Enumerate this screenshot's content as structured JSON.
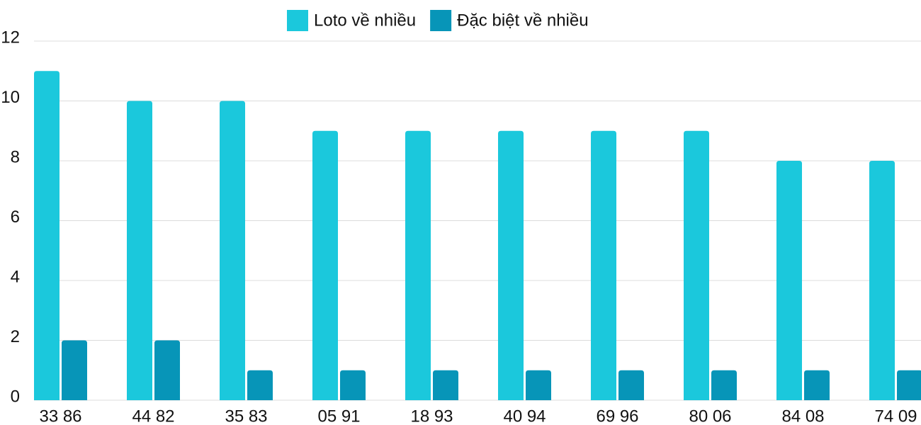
{
  "chart_data": {
    "type": "bar",
    "categories": [
      "33 86",
      "44 82",
      "35 83",
      "05 91",
      "18 93",
      "40 94",
      "69 96",
      "80 06",
      "84 08",
      "74 09"
    ],
    "series": [
      {
        "name": "Loto về nhiều",
        "color": "#1bc8dc",
        "values": [
          11,
          10,
          10,
          9,
          9,
          9,
          9,
          9,
          8,
          8
        ]
      },
      {
        "name": "Đặc biệt về nhiều",
        "color": "#0795b8",
        "values": [
          2,
          2,
          1,
          1,
          1,
          1,
          1,
          1,
          1,
          1
        ]
      }
    ],
    "ylim": [
      0,
      12
    ],
    "yticks": [
      0,
      2,
      4,
      6,
      8,
      10,
      12
    ],
    "grid": true,
    "legend": "top"
  }
}
